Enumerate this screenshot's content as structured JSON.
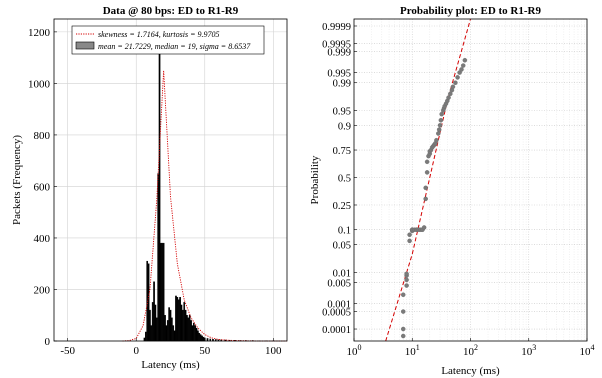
{
  "chart_data": [
    {
      "type": "bar",
      "title": "Data @ 80 bps: ED to R1-R9",
      "xlabel": "Latency (ms)",
      "ylabel": "Packets (Frequency)",
      "xlim": [
        -60,
        110
      ],
      "ylim": [
        0,
        1250
      ],
      "xticks": [
        "-50",
        "0",
        "50",
        "100"
      ],
      "yticks": [
        "0",
        "200",
        "400",
        "600",
        "800",
        "1000",
        "1200"
      ],
      "grid": true,
      "legend": {
        "placement": "top-right",
        "entries": [
          "skewness = 1.7164, kurtosis = 9.9705",
          "mean = 21.7229, median = 19, sigma = 8.6537"
        ]
      },
      "series": [
        {
          "kind": "histogram",
          "x": [
            6,
            7,
            8,
            9,
            10,
            11,
            12,
            13,
            14,
            15,
            16,
            17,
            18,
            19,
            20,
            21,
            22,
            23,
            24,
            25,
            26,
            27,
            28,
            29,
            30,
            31,
            32,
            33,
            34,
            35,
            36,
            37,
            38,
            39,
            40,
            41,
            42,
            43,
            44,
            45,
            46,
            47,
            48,
            49,
            50,
            52,
            54,
            56,
            58,
            60,
            62,
            65,
            68,
            72,
            76,
            80,
            85,
            90,
            95,
            100
          ],
          "values": [
            12,
            35,
            310,
            300,
            120,
            60,
            150,
            230,
            140,
            90,
            650,
            1215,
            380,
            380,
            380,
            100,
            60,
            80,
            130,
            120,
            90,
            60,
            40,
            175,
            170,
            160,
            170,
            140,
            120,
            150,
            120,
            100,
            90,
            100,
            80,
            60,
            70,
            60,
            50,
            40,
            30,
            25,
            20,
            15,
            12,
            10,
            8,
            7,
            6,
            5,
            5,
            4,
            3,
            3,
            2,
            2,
            2,
            1,
            1,
            1
          ]
        },
        {
          "kind": "fit-line",
          "style": "dotted red",
          "x": [
            -10,
            -5,
            0,
            5,
            10,
            15,
            20,
            25,
            30,
            35,
            40,
            45,
            50,
            55,
            60,
            70,
            80,
            90,
            100,
            110
          ],
          "values": [
            0,
            2,
            10,
            60,
            200,
            550,
            1050,
            560,
            300,
            160,
            90,
            50,
            25,
            12,
            6,
            2,
            1,
            0,
            0,
            0
          ]
        }
      ]
    },
    {
      "type": "scatter",
      "title": "Probability plot: ED to R1-R9",
      "xlabel": "Latency (ms)",
      "ylabel": "Probability",
      "xscale": "log",
      "xlim": [
        1,
        10000
      ],
      "xticks": [
        "10^0",
        "10^1",
        "10^2",
        "10^3",
        "10^4"
      ],
      "yscale": "normal-probability",
      "ylim": [
        3e-05,
        0.99995
      ],
      "yticks": [
        "0.0001",
        "0.0005",
        "0.001",
        "0.005",
        "0.01",
        "0.05",
        "0.1",
        "0.25",
        "0.5",
        "0.75",
        "0.9",
        "0.95",
        "0.99",
        "0.995",
        "0.999",
        "0.9995",
        "0.9999"
      ],
      "grid": true,
      "series": [
        {
          "kind": "empirical",
          "marker": "grey dot",
          "x": [
            7,
            7,
            7,
            7,
            8,
            8,
            8,
            8,
            9,
            9,
            10,
            10,
            10,
            11,
            12,
            12,
            13,
            14,
            15,
            16,
            17,
            17,
            18,
            18,
            19,
            20,
            20,
            21,
            22,
            23,
            24,
            25,
            26,
            28,
            29,
            30,
            31,
            32,
            34,
            35,
            36,
            38,
            40,
            42,
            45,
            48,
            50,
            55,
            60,
            65,
            70,
            75,
            80
          ],
          "values": [
            5e-05,
            0.0001,
            0.0005,
            0.002,
            0.004,
            0.006,
            0.008,
            0.009,
            0.06,
            0.08,
            0.095,
            0.1,
            0.1,
            0.1,
            0.1,
            0.1,
            0.1,
            0.1,
            0.1,
            0.11,
            0.3,
            0.4,
            0.55,
            0.65,
            0.7,
            0.72,
            0.74,
            0.75,
            0.77,
            0.78,
            0.79,
            0.8,
            0.82,
            0.86,
            0.88,
            0.9,
            0.92,
            0.94,
            0.95,
            0.955,
            0.96,
            0.965,
            0.97,
            0.975,
            0.98,
            0.984,
            0.987,
            0.99,
            0.993,
            0.995,
            0.996,
            0.997,
            0.998
          ]
        },
        {
          "kind": "reference-line",
          "style": "dashed red",
          "x": [
            3.5,
            10,
            20,
            40,
            100
          ],
          "values": [
            3e-05,
            0.03,
            0.5,
            0.97,
            0.99995
          ]
        }
      ]
    }
  ]
}
